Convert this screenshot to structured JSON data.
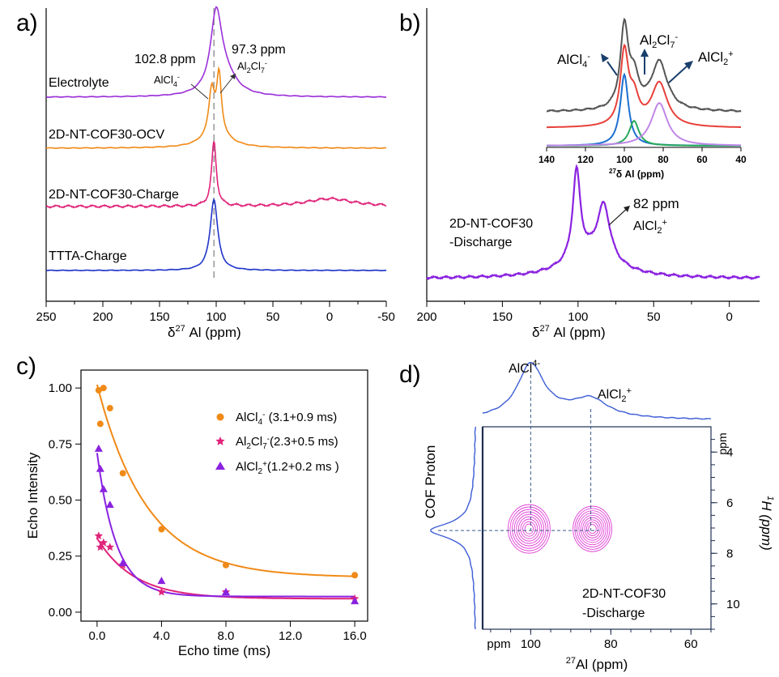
{
  "panel_labels": {
    "a": "a)",
    "b": "b)",
    "c": "c)",
    "d": "d)"
  },
  "chart_data": [
    {
      "panel": "a",
      "type": "line",
      "title": "",
      "xlabel": "δ27 Al (ppm)",
      "ylabel": "",
      "xlim": [
        250,
        -50
      ],
      "xticks": [
        250,
        200,
        150,
        100,
        50,
        0,
        -50
      ],
      "xtick_labels": [
        "250",
        "200",
        "150",
        "100",
        "50",
        "0",
        "-50"
      ],
      "reference_line_ppm": 102,
      "series": [
        {
          "name": "Electrolyte",
          "color": "#9b30d9",
          "peaks": [
            {
              "center": 100,
              "width": 6,
              "height": 1.0
            },
            {
              "center": 92,
              "width": 12,
              "height": 0.25
            }
          ]
        },
        {
          "name": "2D-NT-COF30-OCV",
          "color": "#f08a17",
          "peaks": [
            {
              "center": 104,
              "width": 3,
              "height": 0.65
            },
            {
              "center": 97.5,
              "width": 2.5,
              "height": 0.85
            },
            {
              "center": 100,
              "width": 14,
              "height": 0.2
            }
          ]
        },
        {
          "name": "2D-NT-COF30-Charge",
          "color": "#e0237a",
          "peaks": [
            {
              "center": 102,
              "width": 2.5,
              "height": 1.0
            },
            {
              "center": 0,
              "width": 25,
              "height": 0.12
            }
          ]
        },
        {
          "name": "TTTA-Charge",
          "color": "#1f35c9",
          "peaks": [
            {
              "center": 102,
              "width": 4,
              "height": 1.0
            }
          ]
        }
      ],
      "annotations": {
        "peak1_ppm": "102.8 ppm",
        "peak1_species": "AlCl4-",
        "peak2_ppm": "97.3 ppm",
        "peak2_species": "Al2Cl7-"
      }
    },
    {
      "panel": "b",
      "type": "line",
      "title": "",
      "xlabel": "δ27 Al (ppm)",
      "xlim": [
        200,
        -20
      ],
      "xticks": [
        200,
        150,
        100,
        50,
        0
      ],
      "xtick_labels": [
        "200",
        "150",
        "100",
        "50",
        "0"
      ],
      "series": [
        {
          "name": "2D-NT-COF30 -Discharge",
          "color": "#8a22e0",
          "peaks": [
            {
              "center": 101,
              "width": 3,
              "height": 1.0
            },
            {
              "center": 83,
              "width": 5,
              "height": 0.62
            },
            {
              "center": 92,
              "width": 20,
              "height": 0.25
            }
          ]
        }
      ],
      "sample_label_line1": "2D-NT-COF30",
      "sample_label_line2": "-Discharge",
      "annotation_ppm": "82 ppm",
      "annotation_species": "AlCl2+",
      "inset": {
        "xlabel": "27δ Al (ppm)",
        "xlim": [
          140,
          40
        ],
        "xticks": [
          140,
          120,
          100,
          80,
          60,
          40
        ],
        "xtick_labels": [
          "140",
          "120",
          "100",
          "80",
          "60",
          "40"
        ],
        "labels": {
          "alcl4": "AlCl4-",
          "al2cl7": "Al2Cl7-",
          "alcl2": "AlCl2+"
        },
        "series": [
          {
            "name": "experimental",
            "color": "#555555",
            "peaks": [
              {
                "center": 100,
                "width": 2.5,
                "height": 1.0
              },
              {
                "center": 82,
                "width": 5,
                "height": 0.6
              },
              {
                "center": 95,
                "width": 3,
                "height": 0.35
              }
            ]
          },
          {
            "name": "fit",
            "color": "#e8403a",
            "peaks": [
              {
                "center": 100,
                "width": 2.5,
                "height": 1.0
              },
              {
                "center": 82,
                "width": 5,
                "height": 0.6
              },
              {
                "center": 95,
                "width": 3,
                "height": 0.35
              }
            ]
          },
          {
            "name": "AlCl4- component",
            "color": "#1c6fd1",
            "peaks": [
              {
                "center": 100,
                "width": 2.5,
                "height": 1.0
              }
            ]
          },
          {
            "name": "Al2Cl7- component",
            "color": "#27a85a",
            "peaks": [
              {
                "center": 95,
                "width": 3,
                "height": 0.35
              }
            ]
          },
          {
            "name": "AlCl2+ component",
            "color": "#c087e8",
            "peaks": [
              {
                "center": 82,
                "width": 5,
                "height": 0.6
              }
            ]
          }
        ]
      }
    },
    {
      "panel": "c",
      "type": "scatter",
      "title": "",
      "xlabel": "Echo time (ms)",
      "ylabel": "Echo Intensity",
      "xlim": [
        -1,
        16.8
      ],
      "ylim": [
        -0.04,
        1.08
      ],
      "xticks": [
        0,
        4,
        8,
        12,
        16
      ],
      "xtick_labels": [
        "0.0",
        "4.0",
        "8.0",
        "12.0",
        "16.0"
      ],
      "yticks": [
        0,
        0.25,
        0.5,
        0.75,
        1.0
      ],
      "ytick_labels": [
        "0.00",
        "0.25",
        "0.50",
        "0.75",
        "1.00"
      ],
      "series": [
        {
          "name": "AlCl4- (3.1+0.9 ms)",
          "color": "#f08a17",
          "marker": "circle",
          "x": [
            0.1,
            0.2,
            0.4,
            0.8,
            1.6,
            4.0,
            8.0,
            16.0
          ],
          "y": [
            0.99,
            0.84,
            1.0,
            0.91,
            0.62,
            0.37,
            0.21,
            0.165
          ],
          "fit": {
            "a": 0.86,
            "tau": 3.1,
            "c": 0.155
          }
        },
        {
          "name": "Al2Cl7- (2.3+0.5 ms)",
          "color": "#e0237a",
          "marker": "star",
          "x": [
            0.1,
            0.2,
            0.4,
            0.8,
            1.6,
            4.0,
            8.0,
            16.0
          ],
          "y": [
            0.34,
            0.29,
            0.31,
            0.29,
            0.21,
            0.09,
            0.09,
            0.06
          ],
          "fit": {
            "a": 0.27,
            "tau": 2.3,
            "c": 0.06
          }
        },
        {
          "name": "AlCl2+ (1.2+0.2 ms)",
          "color": "#8a22e0",
          "marker": "triangle",
          "x": [
            0.1,
            0.2,
            0.4,
            0.8,
            1.6,
            4.0,
            8.0,
            16.0
          ],
          "y": [
            0.73,
            0.64,
            0.55,
            0.48,
            0.22,
            0.14,
            0.09,
            0.05
          ],
          "fit": {
            "a": 0.64,
            "tau": 1.2,
            "c": 0.07
          }
        }
      ],
      "legend": [
        {
          "text": "AlCl4- (3.1+0.9 ms)"
        },
        {
          "text": "Al2Cl7-(2.3+0.5 ms)"
        },
        {
          "text": "AlCl2+(1.2+0.2 ms )"
        }
      ]
    },
    {
      "panel": "d",
      "type": "heatmap",
      "title": "",
      "xlabel": "27Al (ppm)",
      "ylabel_right": "1H (ppm)",
      "ylabel_left": "COF Proton",
      "xlim": [
        112,
        55
      ],
      "ylim": [
        3,
        11
      ],
      "xticks": [
        100,
        80,
        60
      ],
      "xtick_labels": [
        "100",
        "80",
        "60"
      ],
      "yticks": [
        4,
        6,
        8,
        10
      ],
      "ytick_labels": [
        "4",
        "6",
        "8",
        "10"
      ],
      "unit_label": "ppm",
      "contour_color": "#e03fd6",
      "cross_peaks": [
        {
          "x": 100,
          "y": 7.1
        },
        {
          "x": 85,
          "y": 7.1
        }
      ],
      "top_projection_labels": {
        "alcl4": "AlCl4-",
        "alcl2": "AlCl2+"
      },
      "sample_label_line1": "2D-NT-COF30",
      "sample_label_line2": "-Discharge"
    }
  ]
}
